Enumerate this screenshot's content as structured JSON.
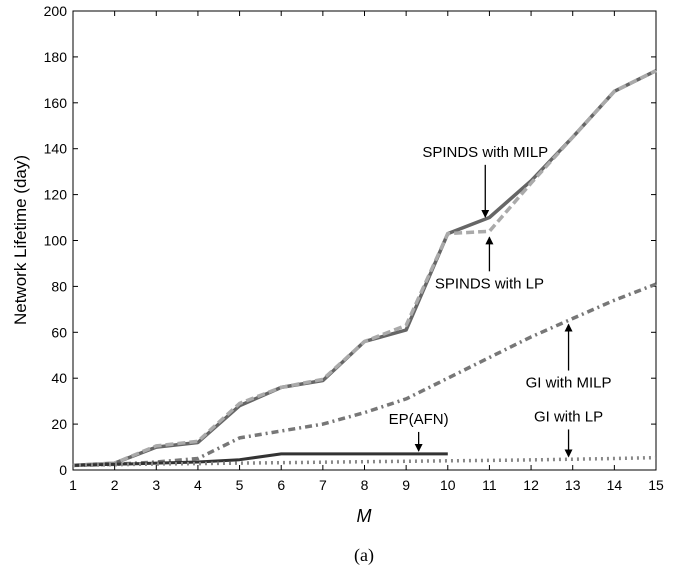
{
  "chart_data": {
    "type": "line",
    "xlabel": "M",
    "ylabel": "Network Lifetime (day)",
    "xlim": [
      1,
      15
    ],
    "ylim": [
      0,
      200
    ],
    "x_ticks": [
      1,
      2,
      3,
      4,
      5,
      6,
      7,
      8,
      9,
      10,
      11,
      12,
      13,
      14,
      15
    ],
    "y_ticks": [
      0,
      20,
      40,
      60,
      80,
      100,
      120,
      140,
      160,
      180,
      200
    ],
    "grid": false,
    "caption": "(a)",
    "series": [
      {
        "key": "spinds_milp",
        "x": [
          1,
          2,
          3,
          4,
          5,
          6,
          7,
          8,
          9,
          10,
          11,
          12,
          13,
          14,
          15
        ],
        "y": [
          2,
          3,
          10,
          12,
          28,
          36,
          39,
          56,
          61,
          103,
          110,
          126,
          145,
          165,
          174
        ],
        "color": "#666666",
        "style": "solid"
      },
      {
        "key": "spinds_lp",
        "x": [
          1,
          2,
          3,
          4,
          5,
          6,
          7,
          8,
          9,
          10,
          11,
          12,
          13,
          14,
          15
        ],
        "y": [
          2,
          3,
          10.5,
          12.5,
          29,
          36,
          39.5,
          56,
          63,
          103,
          104,
          125,
          145,
          165,
          174
        ],
        "color": "#aaaaaa",
        "style": "dashed"
      },
      {
        "key": "gi_milp",
        "x": [
          1,
          2,
          3,
          4,
          5,
          6,
          7,
          8,
          9,
          10,
          11,
          12,
          13,
          14,
          15
        ],
        "y": [
          2,
          2.5,
          3.5,
          5,
          14,
          17,
          20,
          25,
          31,
          40,
          49,
          58,
          66,
          74,
          81
        ],
        "color": "#777777",
        "style": "dashdot"
      },
      {
        "key": "ep_afn",
        "x": [
          1,
          2,
          3,
          4,
          5,
          6,
          7,
          8,
          9,
          10
        ],
        "y": [
          2,
          2.5,
          3,
          3.5,
          4.5,
          7,
          7,
          7,
          7,
          7
        ],
        "color": "#333333",
        "style": "solid"
      },
      {
        "key": "gi_lp",
        "x": [
          1,
          2,
          3,
          4,
          5,
          6,
          7,
          8,
          9,
          10,
          11,
          12,
          13,
          14,
          15
        ],
        "y": [
          2,
          2.3,
          2.6,
          2.8,
          3,
          3.2,
          3.4,
          3.6,
          3.8,
          4,
          4.2,
          4.4,
          4.7,
          5,
          5.4
        ],
        "color": "#888888",
        "style": "dotted"
      }
    ],
    "annotations": [
      {
        "text": "SPINDS with MILP",
        "target_x": 10.9,
        "target_y": 109,
        "arrow": "down"
      },
      {
        "text": "SPINDS with LP",
        "target_x": 11,
        "target_y": 104,
        "arrow": "up"
      },
      {
        "text": "GI with MILP",
        "target_x": 12.9,
        "target_y": 66,
        "arrow": "up"
      },
      {
        "text": "EP(AFN)",
        "target_x": 9.3,
        "target_y": 7,
        "arrow": "down"
      },
      {
        "text": "GI with LP",
        "target_x": 12.9,
        "target_y": 4.6,
        "arrow": "down"
      }
    ]
  }
}
